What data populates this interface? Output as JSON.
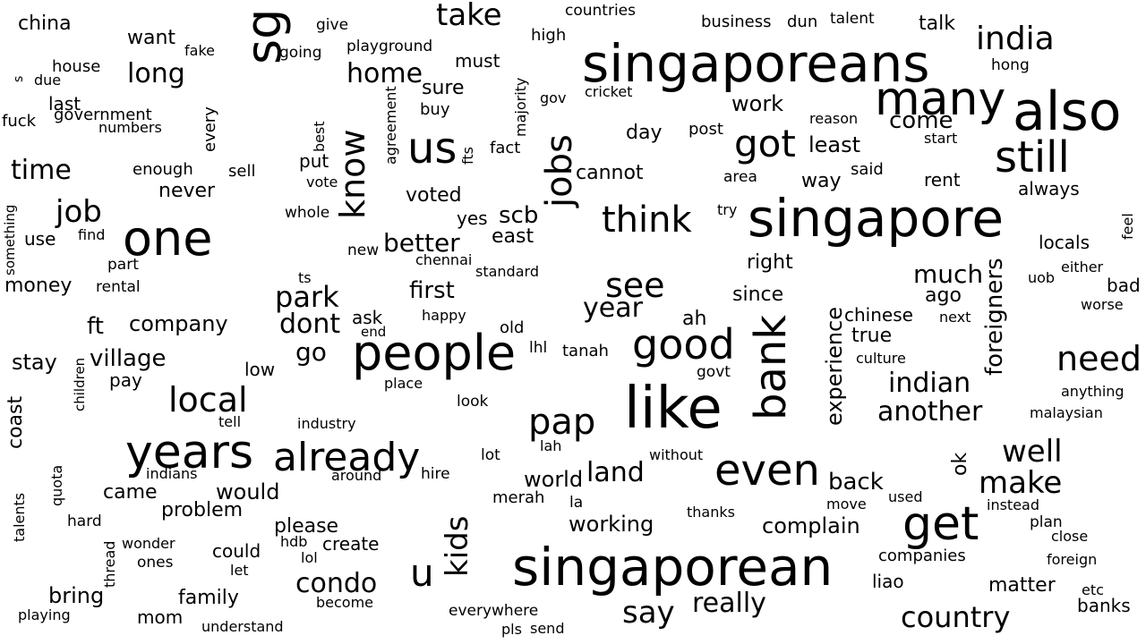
{
  "words": [
    {
      "text": "singaporeans",
      "color": "#482878"
    },
    {
      "text": "singapore",
      "color": "#1f9e89"
    },
    {
      "text": "singaporean",
      "color": "#26828e"
    },
    {
      "text": "people",
      "color": "#5ec962"
    },
    {
      "text": "like",
      "color": "#355f8d"
    },
    {
      "text": "also",
      "color": "#6ece58"
    },
    {
      "text": "many",
      "color": "#440154"
    },
    {
      "text": "one",
      "color": "#31688e"
    },
    {
      "text": "years",
      "color": "#3bbb75"
    },
    {
      "text": "even",
      "color": "#472d7b"
    },
    {
      "text": "get",
      "color": "#440154"
    },
    {
      "text": "already",
      "color": "#21a585"
    },
    {
      "text": "bank",
      "color": "#3e4a89"
    },
    {
      "text": "still",
      "color": "#d2e21b"
    },
    {
      "text": "good",
      "color": "#2c728e"
    },
    {
      "text": "think",
      "color": "#2a788e"
    },
    {
      "text": "got",
      "color": "#31688e"
    },
    {
      "text": "us",
      "color": "#440154"
    },
    {
      "text": "jobs",
      "color": "#3b528b"
    },
    {
      "text": "pap",
      "color": "#39568c"
    },
    {
      "text": "local",
      "color": "#1f968b"
    },
    {
      "text": "sg",
      "color": "#287d8e"
    },
    {
      "text": "see",
      "color": "#22a884"
    },
    {
      "text": "need",
      "color": "#7ad151"
    },
    {
      "text": "take",
      "color": "#2a788e"
    },
    {
      "text": "india",
      "color": "#1fa187"
    },
    {
      "text": "know",
      "color": "#2a788e"
    },
    {
      "text": "well",
      "color": "#472c7a"
    },
    {
      "text": "make",
      "color": "#35b779"
    },
    {
      "text": "country",
      "color": "#3e4989"
    },
    {
      "text": "kids",
      "color": "#414487"
    },
    {
      "text": "u",
      "color": "#b5de2b"
    },
    {
      "text": "say",
      "color": "#440154"
    },
    {
      "text": "another",
      "color": "#453781"
    },
    {
      "text": "land",
      "color": "#7ad151"
    },
    {
      "text": "job",
      "color": "#287c8e"
    },
    {
      "text": "park",
      "color": "#287d8e"
    },
    {
      "text": "time",
      "color": "#a5db36"
    },
    {
      "text": "home",
      "color": "#2ab07f"
    },
    {
      "text": "long",
      "color": "#2a788e"
    },
    {
      "text": "condo",
      "color": "#2fb47c"
    },
    {
      "text": "indian",
      "color": "#26828e"
    },
    {
      "text": "really",
      "color": "#addc30"
    },
    {
      "text": "dont",
      "color": "#481668"
    },
    {
      "text": "better",
      "color": "#fde725"
    },
    {
      "text": "foreigners",
      "color": "#3e4a89"
    },
    {
      "text": "village",
      "color": "#2c728e"
    },
    {
      "text": "experience",
      "color": "#5ec962"
    },
    {
      "text": "year",
      "color": "#33628d"
    },
    {
      "text": "much",
      "color": "#3fbc73"
    },
    {
      "text": "first",
      "color": "#2a788e"
    },
    {
      "text": "come",
      "color": "#4ac16d"
    },
    {
      "text": "back",
      "color": "#2d708e"
    },
    {
      "text": "world",
      "color": "#a5db36"
    },
    {
      "text": "working",
      "color": "#1f9a8a"
    },
    {
      "text": "complain",
      "color": "#21908d"
    },
    {
      "text": "scb",
      "color": "#22a884"
    },
    {
      "text": "ft",
      "color": "#3b528b"
    },
    {
      "text": "would",
      "color": "#238a8d"
    },
    {
      "text": "bring",
      "color": "#1f968b"
    },
    {
      "text": "go",
      "color": "#440154"
    },
    {
      "text": "company",
      "color": "#472a7a"
    },
    {
      "text": "least",
      "color": "#c8e020"
    },
    {
      "text": "stay",
      "color": "#31688e"
    },
    {
      "text": "problem",
      "color": "#20928c"
    },
    {
      "text": "work",
      "color": "#3e4989"
    },
    {
      "text": "money",
      "color": "#3dbc74"
    },
    {
      "text": "chinese",
      "color": "#2c718e"
    },
    {
      "text": "true",
      "color": "#a2da37"
    },
    {
      "text": "please",
      "color": "#20a386"
    },
    {
      "text": "matter",
      "color": "#472d7b"
    },
    {
      "text": "ago",
      "color": "#73d056"
    },
    {
      "text": "voted",
      "color": "#3b528b"
    },
    {
      "text": "since",
      "color": "#450559"
    },
    {
      "text": "day",
      "color": "#2d708e"
    },
    {
      "text": "family",
      "color": "#5ec962"
    },
    {
      "text": "want",
      "color": "#5ec962"
    },
    {
      "text": "sure",
      "color": "#2c718e"
    },
    {
      "text": "right",
      "color": "#3d4d8a"
    },
    {
      "text": "coast",
      "color": "#287d8e"
    },
    {
      "text": "east",
      "color": "#48186a"
    },
    {
      "text": "came",
      "color": "#84d44b"
    },
    {
      "text": "never",
      "color": "#3e4989"
    },
    {
      "text": "locals",
      "color": "#98d83e"
    },
    {
      "text": "ah",
      "color": "#3b528b"
    },
    {
      "text": "rent",
      "color": "#2d708e"
    },
    {
      "text": "always",
      "color": "#25848e"
    },
    {
      "text": "cannot",
      "color": "#481a6c"
    },
    {
      "text": "way",
      "color": "#3a548c"
    },
    {
      "text": "china",
      "color": "#33638d"
    },
    {
      "text": "ok",
      "color": "#3e4a89"
    },
    {
      "text": "banks",
      "color": "#2c718e"
    },
    {
      "text": "talk",
      "color": "#5ec962"
    },
    {
      "text": "yes",
      "color": "#2d708e"
    },
    {
      "text": "put",
      "color": "#440154"
    },
    {
      "text": "create",
      "color": "#1fa188"
    },
    {
      "text": "mom",
      "color": "#a0da39"
    },
    {
      "text": "bad",
      "color": "#2f6c8e"
    },
    {
      "text": "liao",
      "color": "#fde725"
    },
    {
      "text": "ask",
      "color": "#31688e"
    },
    {
      "text": "low",
      "color": "#2d708e"
    },
    {
      "text": "post",
      "color": "#3f4788"
    },
    {
      "text": "house",
      "color": "#2a788e"
    },
    {
      "text": "said",
      "color": "#3b528b"
    },
    {
      "text": "could",
      "color": "#3e4989"
    },
    {
      "text": "pay",
      "color": "#b0dd2f"
    },
    {
      "text": "use",
      "color": "#33638d"
    },
    {
      "text": "enough",
      "color": "#21918c"
    },
    {
      "text": "last",
      "color": "#5ec962"
    },
    {
      "text": "buy",
      "color": "#440154"
    },
    {
      "text": "companies",
      "color": "#218f8d"
    },
    {
      "text": "government",
      "color": "#2c728e"
    },
    {
      "text": "sell",
      "color": "#2ab07f"
    },
    {
      "text": "every",
      "color": "#84d44b"
    },
    {
      "text": "fuck",
      "color": "#2c728e"
    },
    {
      "text": "give",
      "color": "#23a983"
    },
    {
      "text": "going",
      "color": "#3b528b"
    },
    {
      "text": "countries",
      "color": "#22a785"
    },
    {
      "text": "business",
      "color": "#3e4989"
    },
    {
      "text": "dun",
      "color": "#dfe318"
    },
    {
      "text": "talent",
      "color": "#2ab07f"
    },
    {
      "text": "hong",
      "color": "#1f9e89"
    },
    {
      "text": "must",
      "color": "#d8e219"
    },
    {
      "text": "high",
      "color": "#1fa187"
    },
    {
      "text": "cricket",
      "color": "#1f9e89"
    },
    {
      "text": "reason",
      "color": "#22a884"
    },
    {
      "text": "start",
      "color": "#29af7f"
    },
    {
      "text": "playground",
      "color": "#4ec36b"
    },
    {
      "text": "fake",
      "color": "#95d840"
    },
    {
      "text": "due",
      "color": "#3b528b"
    },
    {
      "text": "s",
      "color": "#2a788e"
    },
    {
      "text": "numbers",
      "color": "#2c728e"
    },
    {
      "text": "gov",
      "color": "#3e4989"
    },
    {
      "text": "fact",
      "color": "#3b528b"
    },
    {
      "text": "majority",
      "color": "#482878"
    },
    {
      "text": "agreement",
      "color": "#6ece58"
    },
    {
      "text": "fts",
      "color": "#a8db34"
    },
    {
      "text": "best",
      "color": "#c2df23"
    },
    {
      "text": "vote",
      "color": "#3e4989"
    },
    {
      "text": "whole",
      "color": "#5ec962"
    },
    {
      "text": "area",
      "color": "#dfe318"
    },
    {
      "text": "try",
      "color": "#3e4989"
    },
    {
      "text": "feel",
      "color": "#26828e"
    },
    {
      "text": "something",
      "color": "#7ad151"
    },
    {
      "text": "find",
      "color": "#3b528b"
    },
    {
      "text": "new",
      "color": "#4ac16d"
    },
    {
      "text": "chennai",
      "color": "#482878"
    },
    {
      "text": "standard",
      "color": "#addc30"
    },
    {
      "text": "part",
      "color": "#1fa187"
    },
    {
      "text": "rental",
      "color": "#2c728e"
    },
    {
      "text": "ts",
      "color": "#3e4989"
    },
    {
      "text": "either",
      "color": "#1f9e89"
    },
    {
      "text": "uob",
      "color": "#2c728e"
    },
    {
      "text": "next",
      "color": "#7ad151"
    },
    {
      "text": "worse",
      "color": "#b5de2b"
    },
    {
      "text": "happy",
      "color": "#481a6c"
    },
    {
      "text": "old",
      "color": "#33638d"
    },
    {
      "text": "end",
      "color": "#3b528b"
    },
    {
      "text": "lhl",
      "color": "#2a788e"
    },
    {
      "text": "tanah",
      "color": "#440154"
    },
    {
      "text": "govt",
      "color": "#1f968b"
    },
    {
      "text": "culture",
      "color": "#c2df23"
    },
    {
      "text": "children",
      "color": "#2c728e"
    },
    {
      "text": "place",
      "color": "#22a884"
    },
    {
      "text": "look",
      "color": "#2c728e"
    },
    {
      "text": "anything",
      "color": "#c2df23"
    },
    {
      "text": "tell",
      "color": "#fde725"
    },
    {
      "text": "industry",
      "color": "#3b528b"
    },
    {
      "text": "malaysian",
      "color": "#3e4989"
    },
    {
      "text": "lah",
      "color": "#3b528b"
    },
    {
      "text": "lot",
      "color": "#22a884"
    },
    {
      "text": "without",
      "color": "#3b528b"
    },
    {
      "text": "indians",
      "color": "#26828e"
    },
    {
      "text": "around",
      "color": "#2c728e"
    },
    {
      "text": "hire",
      "color": "#1f9e89"
    },
    {
      "text": "quota",
      "color": "#a0da39"
    },
    {
      "text": "talents",
      "color": "#3e4989"
    },
    {
      "text": "used",
      "color": "#3b528b"
    },
    {
      "text": "instead",
      "color": "#3e4989"
    },
    {
      "text": "merah",
      "color": "#6ece58"
    },
    {
      "text": "la",
      "color": "#440154"
    },
    {
      "text": "move",
      "color": "#c2df23"
    },
    {
      "text": "hard",
      "color": "#440154"
    },
    {
      "text": "thanks",
      "color": "#a0da39"
    },
    {
      "text": "plan",
      "color": "#6ece58"
    },
    {
      "text": "close",
      "color": "#3e4989"
    },
    {
      "text": "wonder",
      "color": "#fde725"
    },
    {
      "text": "thread",
      "color": "#6ece58"
    },
    {
      "text": "hdb",
      "color": "#3b528b"
    },
    {
      "text": "ones",
      "color": "#2c728e"
    },
    {
      "text": "lol",
      "color": "#3b528b"
    },
    {
      "text": "let",
      "color": "#3b528b"
    },
    {
      "text": "foreign",
      "color": "#1f9e89"
    },
    {
      "text": "etc",
      "color": "#2c728e"
    },
    {
      "text": "become",
      "color": "#440154"
    },
    {
      "text": "everywhere",
      "color": "#3e4989"
    },
    {
      "text": "playing",
      "color": "#3b528b"
    },
    {
      "text": "understand",
      "color": "#a0da39"
    },
    {
      "text": "pls",
      "color": "#22a884"
    },
    {
      "text": "send",
      "color": "#22a884"
    }
  ]
}
